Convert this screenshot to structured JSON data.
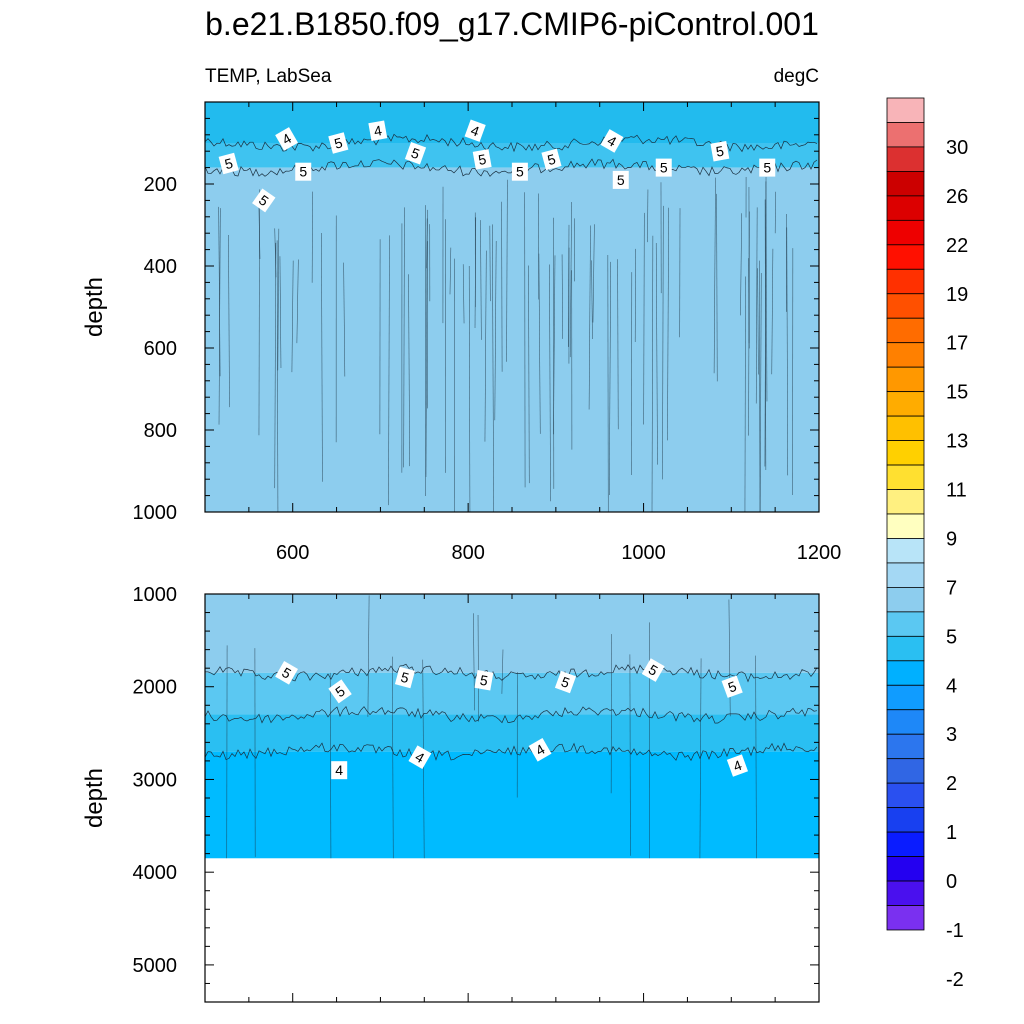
{
  "title": "b.e21.B1850.f09_g17.CMIP6-piControl.001",
  "variable_label": "TEMP, LabSea",
  "units_label": "degC",
  "chart_data": [
    {
      "type": "contour",
      "panel": "upper",
      "xlabel": "",
      "ylabel": "depth",
      "xlim": [
        500,
        1200
      ],
      "ylim": [
        1000,
        0
      ],
      "xticks": [
        600,
        800,
        1000,
        1200
      ],
      "yticks": [
        200,
        400,
        600,
        800,
        1000
      ],
      "bands": [
        {
          "top": 0,
          "bottom": 100,
          "color": "#22bbee"
        },
        {
          "top": 100,
          "bottom": 160,
          "color": "#3fc3f0"
        },
        {
          "top": 160,
          "bottom": 1000,
          "color": "#8dcdee"
        }
      ],
      "contour_labels": [
        {
          "text": "5",
          "x": 527,
          "y": 150,
          "rot": -15
        },
        {
          "text": "4",
          "x": 593,
          "y": 90,
          "rot": -30
        },
        {
          "text": "5",
          "x": 612,
          "y": 170,
          "rot": 0
        },
        {
          "text": "5",
          "x": 567,
          "y": 240,
          "rot": 35
        },
        {
          "text": "5",
          "x": 652,
          "y": 100,
          "rot": -15
        },
        {
          "text": "4",
          "x": 697,
          "y": 70,
          "rot": -10
        },
        {
          "text": "5",
          "x": 740,
          "y": 125,
          "rot": 20
        },
        {
          "text": "4",
          "x": 808,
          "y": 70,
          "rot": 20
        },
        {
          "text": "5",
          "x": 816,
          "y": 140,
          "rot": -10
        },
        {
          "text": "5",
          "x": 859,
          "y": 170,
          "rot": 0
        },
        {
          "text": "5",
          "x": 895,
          "y": 140,
          "rot": -15
        },
        {
          "text": "4",
          "x": 964,
          "y": 95,
          "rot": 30
        },
        {
          "text": "5",
          "x": 974,
          "y": 190,
          "rot": 0
        },
        {
          "text": "5",
          "x": 1023,
          "y": 160,
          "rot": 0
        },
        {
          "text": "5",
          "x": 1087,
          "y": 120,
          "rot": -10
        },
        {
          "text": "5",
          "x": 1141,
          "y": 160,
          "rot": 0
        }
      ]
    },
    {
      "type": "contour",
      "panel": "lower",
      "xlabel": "",
      "ylabel": "depth",
      "xlim": [
        500,
        1200
      ],
      "ylim": [
        5400,
        1000
      ],
      "xticks": [
        600,
        800,
        1000,
        1200
      ],
      "yticks": [
        1000,
        2000,
        3000,
        4000,
        5000
      ],
      "fill_bottom_depth": 3850,
      "bands": [
        {
          "top": 1000,
          "bottom": 1850,
          "color": "#8dcdee"
        },
        {
          "top": 1850,
          "bottom": 2300,
          "color": "#5bc8f2"
        },
        {
          "top": 2300,
          "bottom": 2700,
          "color": "#2abff2"
        },
        {
          "top": 2700,
          "bottom": 3850,
          "color": "#00bbff"
        }
      ],
      "contour_labels": [
        {
          "text": "5",
          "x": 593,
          "y": 1850,
          "rot": 30
        },
        {
          "text": "5",
          "x": 654,
          "y": 2050,
          "rot": -35
        },
        {
          "text": "5",
          "x": 728,
          "y": 1900,
          "rot": 15
        },
        {
          "text": "5",
          "x": 818,
          "y": 1930,
          "rot": 10
        },
        {
          "text": "5",
          "x": 911,
          "y": 1950,
          "rot": 20
        },
        {
          "text": "5",
          "x": 1011,
          "y": 1820,
          "rot": 30
        },
        {
          "text": "5",
          "x": 1101,
          "y": 2000,
          "rot": -20
        },
        {
          "text": "4",
          "x": 653,
          "y": 2900,
          "rot": 0
        },
        {
          "text": "4",
          "x": 745,
          "y": 2760,
          "rot": 30
        },
        {
          "text": "4",
          "x": 882,
          "y": 2680,
          "rot": -30
        },
        {
          "text": "4",
          "x": 1107,
          "y": 2850,
          "rot": -20
        }
      ]
    }
  ],
  "colorbar": {
    "colors": [
      "#f8b4b8",
      "#ec7070",
      "#dc3030",
      "#cc0000",
      "#dc0000",
      "#ee0000",
      "#ff1000",
      "#ff3000",
      "#ff5000",
      "#ff6c00",
      "#ff8000",
      "#ff9800",
      "#ffac00",
      "#ffc000",
      "#ffd000",
      "#ffe030",
      "#fff080",
      "#ffffc0",
      "#b8e4f8",
      "#a4d8f4",
      "#8dcdee",
      "#5bc8f2",
      "#2abff2",
      "#00b0ff",
      "#109cff",
      "#1e88f8",
      "#2c76ee",
      "#3066e4",
      "#2a50f0",
      "#1840f0",
      "#0a1cff",
      "#2400f0",
      "#4a10ee",
      "#7a30f0"
    ],
    "labels": [
      {
        "text": "30",
        "boundary": 2
      },
      {
        "text": "26",
        "boundary": 4
      },
      {
        "text": "22",
        "boundary": 6
      },
      {
        "text": "19",
        "boundary": 8
      },
      {
        "text": "17",
        "boundary": 10
      },
      {
        "text": "15",
        "boundary": 12
      },
      {
        "text": "13",
        "boundary": 14
      },
      {
        "text": "11",
        "boundary": 16
      },
      {
        "text": "9",
        "boundary": 18
      },
      {
        "text": "7",
        "boundary": 20
      },
      {
        "text": "5",
        "boundary": 22
      },
      {
        "text": "4",
        "boundary": 24
      },
      {
        "text": "3",
        "boundary": 26
      },
      {
        "text": "2",
        "boundary": 28
      },
      {
        "text": "1",
        "boundary": 30
      },
      {
        "text": "0",
        "boundary": 32
      },
      {
        "text": "-1",
        "boundary": 34
      },
      {
        "text": "-2",
        "boundary": 36
      }
    ]
  }
}
